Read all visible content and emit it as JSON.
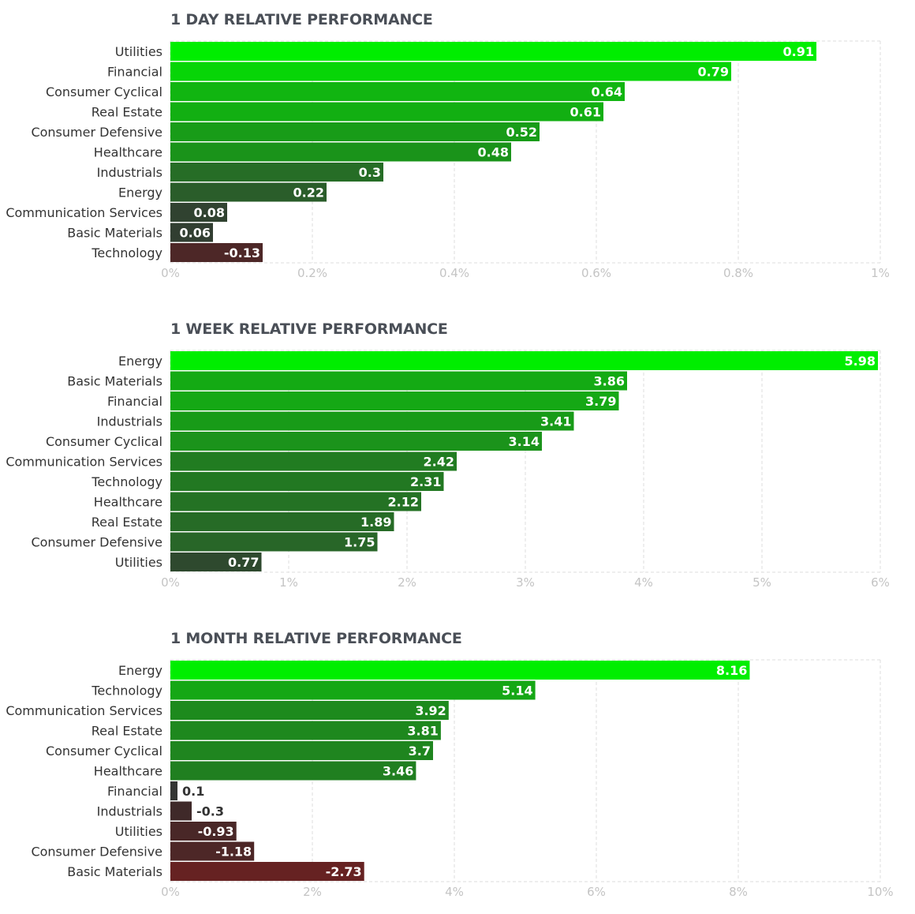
{
  "colors": {
    "strong_green": "#00ee00",
    "dark_green": "#2a5e2a",
    "neutral_dark": "#333333",
    "strong_red": "#b81414",
    "title_color": "#4a4f57",
    "grid": "#dddddd"
  },
  "chart_data": [
    {
      "type": "bar",
      "orientation": "horizontal",
      "title": "1 DAY RELATIVE PERFORMANCE",
      "categories": [
        "Utilities",
        "Financial",
        "Consumer Cyclical",
        "Real Estate",
        "Consumer Defensive",
        "Healthcare",
        "Industrials",
        "Energy",
        "Communication Services",
        "Basic Materials",
        "Technology"
      ],
      "values": [
        0.91,
        0.79,
        0.64,
        0.61,
        0.52,
        0.48,
        0.3,
        0.22,
        0.08,
        0.06,
        -0.13
      ],
      "value_labels": [
        "0.91",
        "0.79",
        "0.64",
        "0.61",
        "0.52",
        "0.48",
        "0.3",
        "0.22",
        "0.08",
        "0.06",
        "-0.13"
      ],
      "xlim": [
        0,
        1
      ],
      "xticks": [
        0,
        0.2,
        0.4,
        0.6,
        0.8,
        1
      ],
      "xtick_labels": [
        "0%",
        "0.2%",
        "0.4%",
        "0.6%",
        "0.8%",
        "1%"
      ],
      "bar_extent": "absolute",
      "grid": true
    },
    {
      "type": "bar",
      "orientation": "horizontal",
      "title": "1 WEEK RELATIVE PERFORMANCE",
      "categories": [
        "Energy",
        "Basic Materials",
        "Financial",
        "Industrials",
        "Consumer Cyclical",
        "Communication Services",
        "Technology",
        "Healthcare",
        "Real Estate",
        "Consumer Defensive",
        "Utilities"
      ],
      "values": [
        5.98,
        3.86,
        3.79,
        3.41,
        3.14,
        2.42,
        2.31,
        2.12,
        1.89,
        1.75,
        0.77
      ],
      "value_labels": [
        "5.98",
        "3.86",
        "3.79",
        "3.41",
        "3.14",
        "2.42",
        "2.31",
        "2.12",
        "1.89",
        "1.75",
        "0.77"
      ],
      "xlim": [
        0,
        6
      ],
      "xticks": [
        0,
        1,
        2,
        3,
        4,
        5,
        6
      ],
      "xtick_labels": [
        "0%",
        "1%",
        "2%",
        "3%",
        "4%",
        "5%",
        "6%"
      ],
      "bar_extent": "absolute",
      "grid": true
    },
    {
      "type": "bar",
      "orientation": "horizontal",
      "title": "1 MONTH RELATIVE PERFORMANCE",
      "categories": [
        "Energy",
        "Technology",
        "Communication Services",
        "Real Estate",
        "Consumer Cyclical",
        "Healthcare",
        "Financial",
        "Industrials",
        "Utilities",
        "Consumer Defensive",
        "Basic Materials"
      ],
      "values": [
        8.16,
        5.14,
        3.92,
        3.81,
        3.7,
        3.46,
        0.1,
        -0.3,
        -0.93,
        -1.18,
        -2.73
      ],
      "value_labels": [
        "8.16",
        "5.14",
        "3.92",
        "3.81",
        "3.7",
        "3.46",
        "0.1",
        "-0.3",
        "-0.93",
        "-1.18",
        "-2.73"
      ],
      "xlim": [
        0,
        10
      ],
      "xticks": [
        0,
        2,
        4,
        6,
        8,
        10
      ],
      "xtick_labels": [
        "0%",
        "2%",
        "4%",
        "6%",
        "8%",
        "10%"
      ],
      "bar_extent": "absolute",
      "grid": true
    }
  ]
}
